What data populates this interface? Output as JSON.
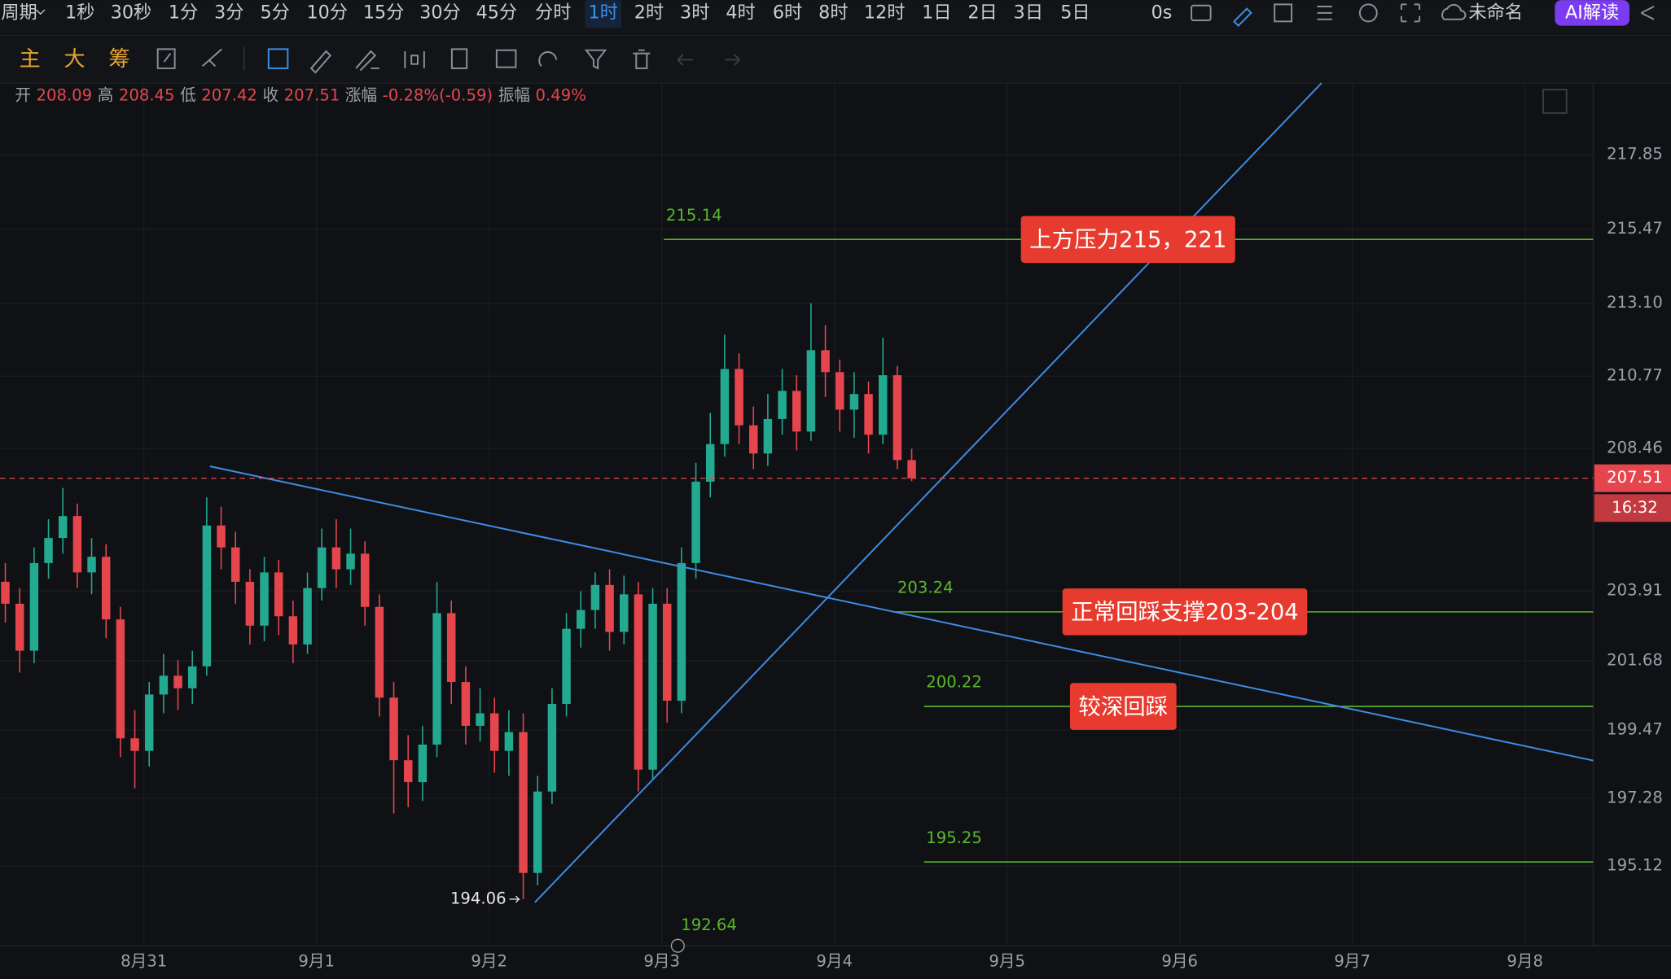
{
  "toolbar": {
    "periods": [
      "周期",
      "1秒",
      "30秒",
      "1分",
      "3分",
      "5分",
      "10分",
      "15分",
      "30分",
      "45分",
      "分时",
      "1时",
      "2时",
      "3时",
      "4时",
      "6时",
      "8时",
      "12时",
      "1日",
      "2日",
      "3日",
      "5日"
    ],
    "active_period": "1时",
    "timer": "0s",
    "layout_name": "未命名",
    "ai_button": "AI解读",
    "indicators": [
      "主",
      "大",
      "筹"
    ]
  },
  "ohlc_header": {
    "labels": [
      "开",
      "高",
      "低",
      "收"
    ],
    "change_label": "涨幅",
    "change": "-0.28%(-0.59)",
    "amplitude_label": "振幅",
    "amplitude": "0.49%"
  },
  "chart_data": {
    "type": "candlestick",
    "open": [
      204.2,
      203.5,
      202.0,
      204.8,
      205.6,
      206.3,
      204.5,
      205.0,
      203.0,
      199.2,
      198.8,
      200.6,
      201.2,
      200.8,
      201.5,
      206.0,
      205.3,
      204.2,
      202.8,
      204.5,
      203.1,
      202.2,
      204.0,
      205.3,
      204.6,
      205.1,
      203.4,
      200.5,
      198.5,
      197.8,
      199.0,
      203.2,
      201.0,
      199.6,
      200.0,
      198.8,
      199.4,
      194.9,
      197.5,
      200.3,
      202.7,
      203.3,
      204.1,
      202.6,
      203.8,
      198.2,
      203.5,
      200.4,
      204.8,
      207.4,
      208.6,
      211.0,
      209.2,
      208.3,
      209.4,
      210.3,
      209.0,
      211.6,
      210.9,
      209.7,
      210.2,
      208.9,
      210.8,
      208.09
    ],
    "high": [
      204.8,
      204.0,
      205.3,
      206.2,
      207.2,
      206.7,
      205.6,
      205.4,
      203.4,
      200.1,
      201.0,
      201.9,
      201.7,
      202.0,
      206.9,
      206.6,
      205.8,
      204.6,
      205.0,
      204.9,
      203.6,
      204.5,
      205.9,
      206.2,
      205.9,
      205.5,
      203.8,
      201.0,
      199.3,
      199.6,
      204.2,
      203.6,
      201.5,
      200.8,
      200.5,
      200.1,
      200.0,
      198.0,
      200.8,
      203.2,
      203.9,
      204.5,
      204.6,
      204.4,
      204.2,
      204.0,
      204.0,
      205.3,
      208.0,
      209.6,
      212.1,
      211.5,
      209.8,
      210.2,
      211.0,
      210.8,
      213.1,
      212.4,
      211.3,
      210.9,
      210.6,
      212.0,
      211.1,
      208.45
    ],
    "low": [
      202.9,
      201.3,
      201.6,
      204.3,
      205.1,
      204.0,
      203.8,
      202.4,
      198.6,
      197.6,
      198.3,
      200.0,
      200.1,
      200.3,
      201.2,
      204.6,
      203.5,
      202.2,
      202.3,
      202.5,
      201.6,
      201.9,
      203.6,
      204.0,
      204.1,
      202.8,
      199.9,
      196.8,
      197.0,
      197.2,
      198.6,
      200.3,
      199.0,
      199.1,
      198.1,
      198.0,
      194.06,
      194.5,
      197.1,
      199.9,
      202.1,
      202.7,
      202.0,
      202.2,
      197.5,
      197.9,
      199.7,
      200.0,
      204.3,
      206.9,
      208.2,
      208.6,
      207.8,
      207.9,
      208.9,
      208.4,
      208.7,
      210.1,
      209.0,
      208.8,
      208.3,
      208.6,
      207.8,
      207.42
    ],
    "close": [
      203.5,
      202.0,
      204.8,
      205.6,
      206.3,
      204.5,
      205.0,
      203.0,
      199.2,
      198.8,
      200.6,
      201.2,
      200.8,
      201.5,
      206.0,
      205.3,
      204.2,
      202.8,
      204.5,
      203.1,
      202.2,
      204.0,
      205.3,
      204.6,
      205.1,
      203.4,
      200.5,
      198.5,
      197.8,
      199.0,
      203.2,
      201.0,
      199.6,
      200.0,
      198.8,
      199.4,
      194.9,
      197.5,
      200.3,
      202.7,
      203.3,
      204.1,
      202.6,
      203.8,
      198.2,
      203.5,
      200.4,
      204.8,
      207.4,
      208.6,
      211.0,
      209.2,
      208.3,
      209.4,
      210.3,
      209.0,
      211.6,
      210.9,
      209.7,
      210.2,
      208.9,
      210.8,
      208.09,
      207.51
    ],
    "up_color": "#22a98f",
    "down_color": "#e5464e",
    "xlim": [
      -0.37,
      110.37
    ],
    "xticks": [
      {
        "value": 9.63,
        "label": "8月31"
      },
      {
        "value": 21.63,
        "label": "9月1"
      },
      {
        "value": 33.63,
        "label": "9月2"
      },
      {
        "value": 45.63,
        "label": "9月3"
      },
      {
        "value": 57.63,
        "label": "9月4"
      },
      {
        "value": 69.63,
        "label": "9月5"
      },
      {
        "value": 81.63,
        "label": "9月6"
      },
      {
        "value": 93.63,
        "label": "9月7"
      },
      {
        "value": 105.63,
        "label": "9月8"
      }
    ],
    "ylim": [
      192.57,
      220.13
    ],
    "yticks": [
      217.85,
      215.47,
      {
        "value": 213.1,
        "label": "213.10"
      },
      210.77,
      208.46,
      203.91,
      201.68,
      199.47,
      197.28,
      195.12
    ],
    "grid": true,
    "countdown": "16:32",
    "hlines": [
      {
        "value": 215.14,
        "color": "#58b82c"
      },
      {
        "value": 203.24,
        "color": "#58b82c"
      },
      {
        "value": 200.22,
        "color": "#58b82c"
      },
      {
        "value": 195.25,
        "color": "#58b82c"
      }
    ],
    "price_markers": [
      192.64
    ],
    "trendlines": [
      {
        "points": [
          [
            14.22,
            207.89
          ],
          [
            110.37,
            198.49
          ]
        ],
        "color": "#3d8ee6"
      },
      {
        "points": [
          [
            36.81,
            193.96
          ],
          [
            91.48,
            220.13
          ]
        ],
        "color": "#3d8ee6"
      }
    ],
    "annotations": [
      "上方压力215，221",
      "正常回踩支撑203-204",
      "较深回踩"
    ],
    "annotation_color": "#e63b2e"
  }
}
